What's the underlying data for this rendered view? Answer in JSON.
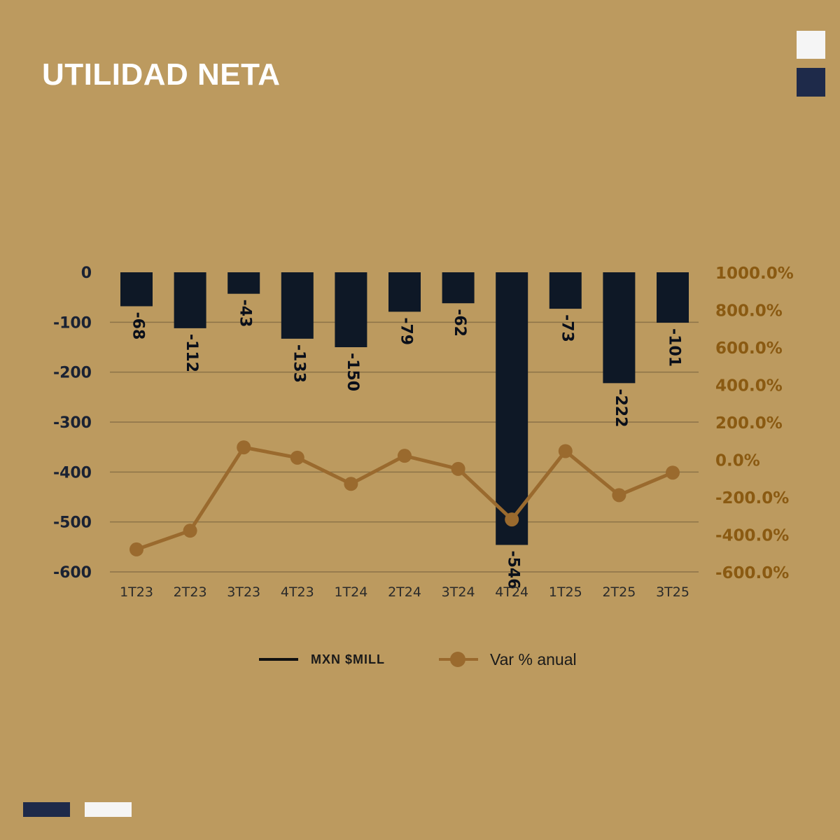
{
  "header": {
    "title": "UTILIDAD NETA"
  },
  "colors": {
    "background": "#BC9A5F",
    "bar": "#0E1826",
    "line": "#9A6A2E",
    "right_axis_text": "#8A5A12",
    "left_axis_text": "#1A2233",
    "decor_navy": "#1E2A4A",
    "decor_white": "#F5F5F5"
  },
  "chart_data": {
    "type": "bar",
    "title": "UTILIDAD NETA",
    "categories": [
      "1T23",
      "2T23",
      "3T23",
      "4T23",
      "1T24",
      "2T24",
      "3T24",
      "4T24",
      "1T25",
      "2T25",
      "3T25"
    ],
    "series": [
      {
        "name": "MXN $MILL",
        "type": "bar",
        "axis": "left",
        "values": [
          -68,
          -112,
          -43,
          -133,
          -150,
          -79,
          -62,
          -546,
          -73,
          -222,
          -101
        ],
        "labels": [
          "-68",
          "-112",
          "-43",
          "-133",
          "-150",
          "-79",
          "-62",
          "-546",
          "-73",
          "-222",
          "-101"
        ]
      },
      {
        "name": "Var % anual",
        "type": "line",
        "axis": "right",
        "values": [
          -480,
          -380,
          65,
          10,
          -130,
          20,
          -50,
          -320,
          45,
          -190,
          -70
        ]
      }
    ],
    "y_left": {
      "min": -600,
      "max": 0,
      "ticks": [
        0,
        -100,
        -200,
        -300,
        -400,
        -500,
        -600
      ],
      "tick_labels": [
        "0",
        "-100",
        "-200",
        "-300",
        "-400",
        "-500",
        "-600"
      ]
    },
    "y_right": {
      "min": -600,
      "max": 1000,
      "ticks": [
        1000,
        800,
        600,
        400,
        200,
        0,
        -200,
        -400,
        -600
      ],
      "tick_labels": [
        "1000.0%",
        "800.0%",
        "600.0%",
        "400.0%",
        "200.0%",
        "0.0%",
        "-200.0%",
        "-400.0%",
        "-600.0%"
      ]
    },
    "grid": true,
    "legend_position": "bottom"
  },
  "legend": {
    "bars_label": "MXN $MILL",
    "line_label": "Var % anual"
  }
}
